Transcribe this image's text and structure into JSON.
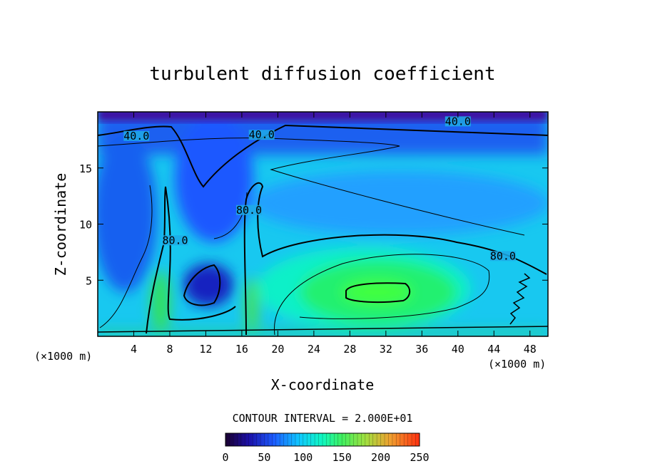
{
  "chart_data": {
    "type": "heatmap",
    "title": "turbulent diffusion coefficient",
    "xlabel": "X-coordinate",
    "ylabel": "Z-coordinate",
    "x_unit": "(×1000 m)",
    "x_unit_right": "(×1000 m)",
    "xlim": [
      0,
      50
    ],
    "ylim": [
      0,
      20
    ],
    "x_ticks": [
      4,
      8,
      12,
      16,
      20,
      24,
      28,
      32,
      36,
      40,
      44,
      48
    ],
    "y_ticks": [
      5,
      10,
      15
    ],
    "contour_interval_label": "CONTOUR INTERVAL = 2.000E+01",
    "contour_labels": [
      {
        "text": "40.0",
        "x": 4.3,
        "z": 17.6
      },
      {
        "text": "40.0",
        "x": 18.2,
        "z": 17.7
      },
      {
        "text": "40.0",
        "x": 40.0,
        "z": 18.9
      },
      {
        "text": "80.0",
        "x": 16.8,
        "z": 11.0
      },
      {
        "text": "80.0",
        "x": 8.6,
        "z": 8.3
      },
      {
        "text": "80.0",
        "x": 45.0,
        "z": 6.9
      }
    ],
    "colorbar": {
      "min": 0,
      "max": 250,
      "ticks": [
        "0",
        "50",
        "100",
        "150",
        "200",
        "250"
      ]
    },
    "features": [
      {
        "name": "green-maximum",
        "x": 31,
        "z": 4,
        "value": 160
      },
      {
        "name": "blue-minimum-left",
        "x": 11.5,
        "z": 4.5,
        "value": 30
      },
      {
        "name": "purple-top-layer",
        "z": 19.5,
        "value": 5
      }
    ],
    "colors": {
      "scale_low": "#000060",
      "scale_mid": "#00ff80",
      "scale_high": "#ff0000"
    }
  }
}
